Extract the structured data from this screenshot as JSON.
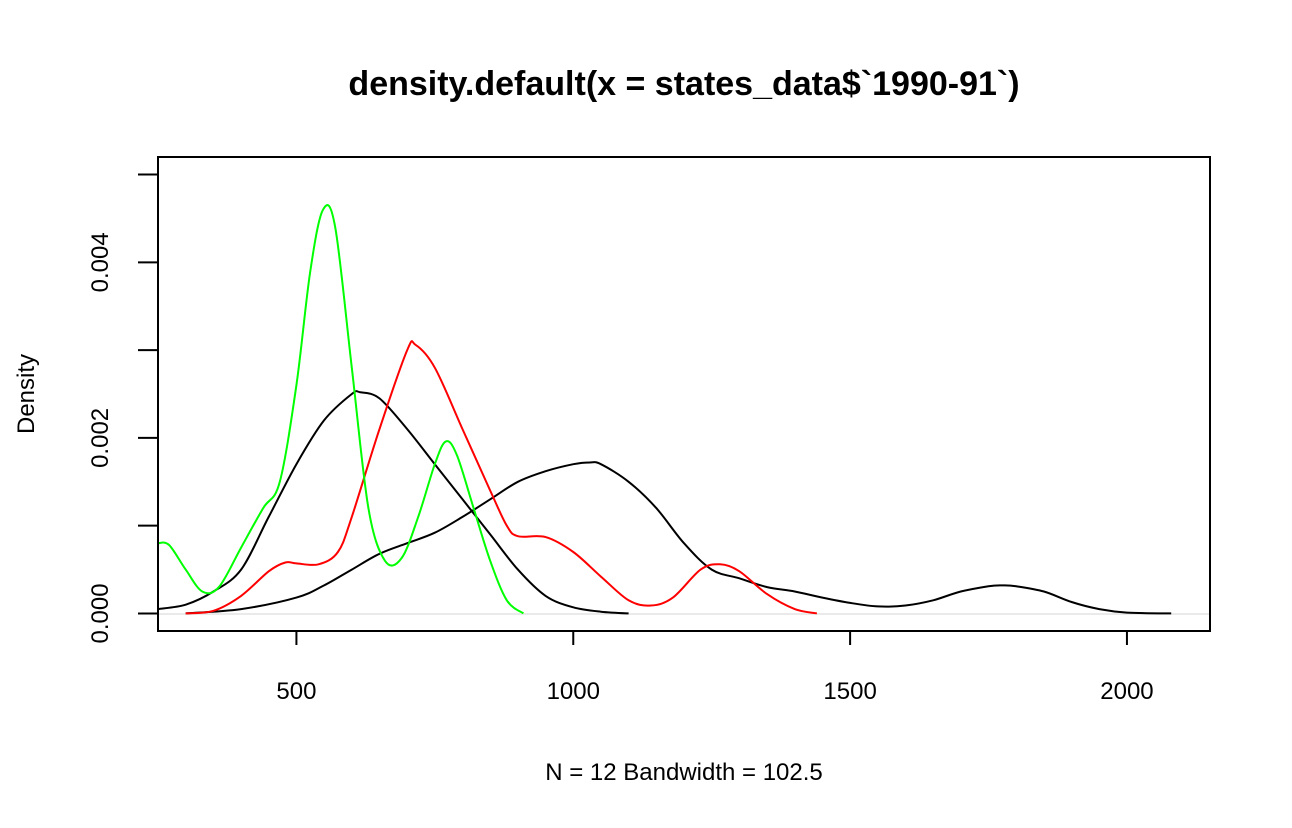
{
  "chart_data": {
    "type": "line",
    "title": "density.default(x = states_data$`1990-91`)",
    "xlabel": "N = 12   Bandwidth = 102.5",
    "ylabel": "Density",
    "xlim": [
      250,
      2150
    ],
    "ylim": [
      -0.0002,
      0.0052
    ],
    "grid": false,
    "legend": "none",
    "x_ticks": [
      500,
      1000,
      1500,
      2000
    ],
    "x_tick_labels": [
      "500",
      "1000",
      "1500",
      "2000"
    ],
    "y_ticks": [
      0.0,
      0.001,
      0.002,
      0.003,
      0.004,
      0.005
    ],
    "y_tick_labels": [
      "0.000",
      "",
      "0.002",
      "",
      "0.004",
      ""
    ],
    "series": [
      {
        "color": "#000000",
        "points": [
          [
            250,
            5e-05
          ],
          [
            300,
            0.0001
          ],
          [
            350,
            0.00025
          ],
          [
            400,
            0.0005
          ],
          [
            450,
            0.0011
          ],
          [
            500,
            0.0017
          ],
          [
            550,
            0.0022
          ],
          [
            600,
            0.0025
          ],
          [
            615,
            0.00252
          ],
          [
            650,
            0.00245
          ],
          [
            700,
            0.0021
          ],
          [
            750,
            0.0017
          ],
          [
            800,
            0.0013
          ],
          [
            850,
            0.0009
          ],
          [
            900,
            0.0005
          ],
          [
            950,
            0.0002
          ],
          [
            1000,
            7e-05
          ],
          [
            1050,
            2e-05
          ],
          [
            1100,
            0.0
          ]
        ]
      },
      {
        "color": "#000000",
        "points": [
          [
            300,
            0.0
          ],
          [
            400,
            5e-05
          ],
          [
            500,
            0.00018
          ],
          [
            550,
            0.00032
          ],
          [
            600,
            0.0005
          ],
          [
            650,
            0.00068
          ],
          [
            700,
            0.0008
          ],
          [
            750,
            0.00092
          ],
          [
            800,
            0.0011
          ],
          [
            850,
            0.0013
          ],
          [
            900,
            0.0015
          ],
          [
            950,
            0.00162
          ],
          [
            1000,
            0.0017
          ],
          [
            1030,
            0.00172
          ],
          [
            1050,
            0.0017
          ],
          [
            1100,
            0.0015
          ],
          [
            1150,
            0.0012
          ],
          [
            1200,
            0.0008
          ],
          [
            1250,
            0.0005
          ],
          [
            1300,
            0.0004
          ],
          [
            1350,
            0.0003
          ],
          [
            1400,
            0.00025
          ],
          [
            1450,
            0.00018
          ],
          [
            1500,
            0.00012
          ],
          [
            1550,
            8e-05
          ],
          [
            1600,
            9e-05
          ],
          [
            1650,
            0.00015
          ],
          [
            1700,
            0.00025
          ],
          [
            1750,
            0.00031
          ],
          [
            1775,
            0.00032
          ],
          [
            1800,
            0.00031
          ],
          [
            1850,
            0.00025
          ],
          [
            1900,
            0.00013
          ],
          [
            1950,
            5e-05
          ],
          [
            2000,
            1e-05
          ],
          [
            2080,
            0.0
          ]
        ]
      },
      {
        "color": "#ff0000",
        "points": [
          [
            300,
            0.0
          ],
          [
            350,
            3e-05
          ],
          [
            400,
            0.0002
          ],
          [
            450,
            0.00048
          ],
          [
            480,
            0.00058
          ],
          [
            500,
            0.00057
          ],
          [
            540,
            0.00056
          ],
          [
            575,
            0.0007
          ],
          [
            600,
            0.0011
          ],
          [
            650,
            0.0021
          ],
          [
            700,
            0.003
          ],
          [
            715,
            0.00306
          ],
          [
            750,
            0.0028
          ],
          [
            800,
            0.0021
          ],
          [
            850,
            0.0014
          ],
          [
            880,
            0.001
          ],
          [
            900,
            0.00088
          ],
          [
            950,
            0.00087
          ],
          [
            1000,
            0.0007
          ],
          [
            1050,
            0.00042
          ],
          [
            1100,
            0.00015
          ],
          [
            1140,
            9e-05
          ],
          [
            1180,
            0.00018
          ],
          [
            1230,
            0.0005
          ],
          [
            1265,
            0.00056
          ],
          [
            1300,
            0.00048
          ],
          [
            1350,
            0.00022
          ],
          [
            1400,
            5e-05
          ],
          [
            1440,
            0.0
          ]
        ]
      },
      {
        "color": "#00ff00",
        "points": [
          [
            250,
            0.0008
          ],
          [
            270,
            0.00078
          ],
          [
            300,
            0.0005
          ],
          [
            330,
            0.00025
          ],
          [
            360,
            0.0003
          ],
          [
            400,
            0.00075
          ],
          [
            440,
            0.0012
          ],
          [
            470,
            0.0015
          ],
          [
            500,
            0.0026
          ],
          [
            525,
            0.0039
          ],
          [
            548,
            0.0046
          ],
          [
            570,
            0.0044
          ],
          [
            600,
            0.0028
          ],
          [
            630,
            0.0012
          ],
          [
            660,
            0.0006
          ],
          [
            690,
            0.00063
          ],
          [
            720,
            0.0011
          ],
          [
            750,
            0.0017
          ],
          [
            770,
            0.00196
          ],
          [
            790,
            0.0018
          ],
          [
            820,
            0.0012
          ],
          [
            850,
            0.0006
          ],
          [
            880,
            0.00015
          ],
          [
            910,
            0.0
          ]
        ]
      }
    ]
  }
}
